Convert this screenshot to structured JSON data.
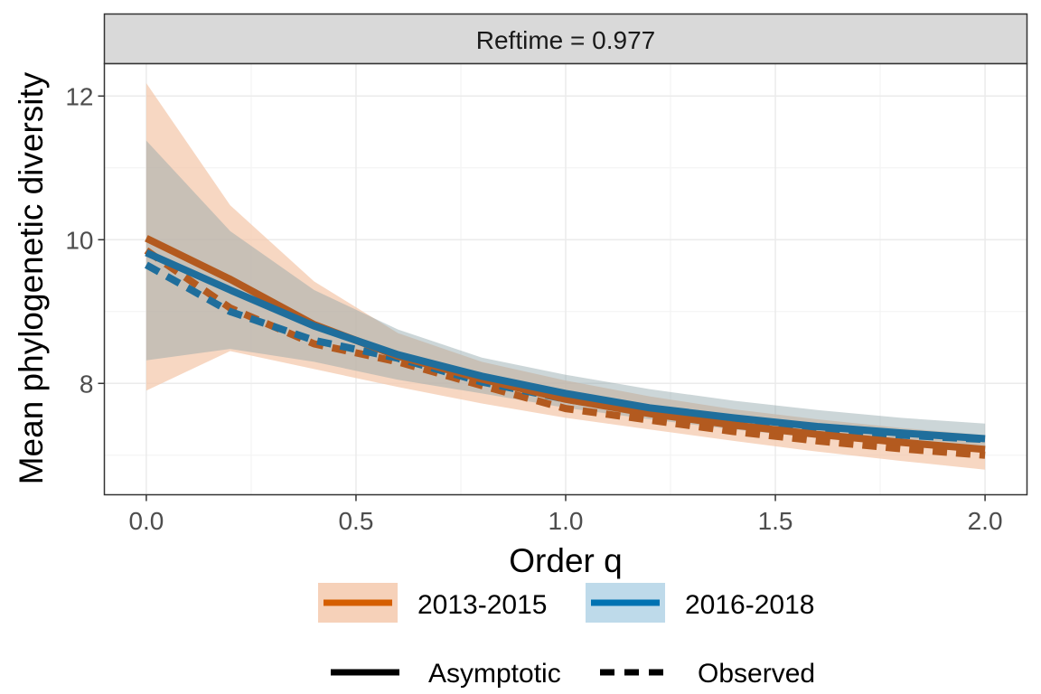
{
  "chart_data": {
    "type": "line",
    "facet_label": "Reftime = 0.977",
    "xlabel": "Order q",
    "ylabel": "Mean phylogenetic diversity",
    "xlim": [
      -0.1,
      2.1
    ],
    "ylim": [
      6.45,
      12.45
    ],
    "x_ticks": [
      "0.0",
      "0.5",
      "1.0",
      "1.5",
      "2.0"
    ],
    "y_ticks": [
      "8",
      "10",
      "12"
    ],
    "grid": true,
    "legend_placement": "bottom",
    "x": [
      0,
      0.2,
      0.4,
      0.6,
      0.8,
      1.0,
      1.2,
      1.4,
      1.6,
      1.8,
      2.0
    ],
    "series": [
      {
        "name": "2013-2015",
        "color": "#D55E00",
        "fill": "#F4C9AD",
        "asymptotic": [
          10.02,
          9.45,
          8.82,
          8.38,
          8.06,
          7.78,
          7.58,
          7.42,
          7.29,
          7.18,
          7.08
        ],
        "observed": [
          9.85,
          9.05,
          8.55,
          8.3,
          7.97,
          7.65,
          7.49,
          7.33,
          7.2,
          7.09,
          7.0
        ],
        "ci_lower": [
          7.9,
          8.45,
          8.2,
          7.95,
          7.72,
          7.52,
          7.36,
          7.2,
          7.05,
          6.92,
          6.8
        ],
        "ci_upper": [
          12.18,
          10.48,
          9.42,
          8.7,
          8.3,
          8.04,
          7.82,
          7.64,
          7.5,
          7.38,
          7.28
        ]
      },
      {
        "name": "2016-2018",
        "color": "#0072B2",
        "fill": "#B3D4E6",
        "asymptotic": [
          9.82,
          9.3,
          8.8,
          8.4,
          8.1,
          7.86,
          7.66,
          7.52,
          7.4,
          7.31,
          7.23
        ],
        "observed": [
          9.65,
          9.0,
          8.6,
          8.35,
          8.02,
          7.78,
          7.6,
          7.47,
          7.36,
          7.28,
          7.22
        ],
        "ci_lower": [
          8.32,
          8.48,
          8.3,
          8.05,
          7.86,
          7.66,
          7.5,
          7.36,
          7.24,
          7.14,
          7.06
        ],
        "ci_upper": [
          11.38,
          10.12,
          9.3,
          8.75,
          8.36,
          8.12,
          7.92,
          7.76,
          7.63,
          7.52,
          7.44
        ]
      }
    ],
    "linetype_legend": [
      {
        "label": "Asymptotic",
        "dash": "solid"
      },
      {
        "label": "Observed",
        "dash": "dashed"
      }
    ]
  }
}
